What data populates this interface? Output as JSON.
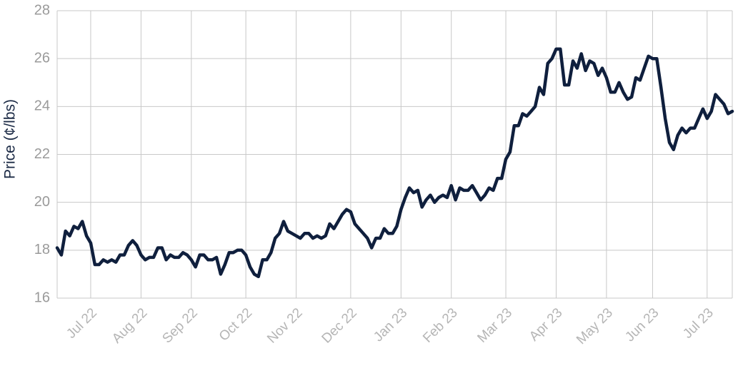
{
  "chart_data": {
    "type": "line",
    "y_label": "Price (¢/lbs)",
    "categories": [
      null,
      null,
      null,
      null,
      null,
      null,
      null,
      null,
      "Jul 22",
      null,
      null,
      null,
      null,
      null,
      null,
      null,
      null,
      null,
      null,
      null,
      "Aug 22",
      null,
      null,
      null,
      null,
      null,
      null,
      null,
      null,
      null,
      null,
      null,
      "Sep 22",
      null,
      null,
      null,
      null,
      null,
      null,
      null,
      null,
      null,
      null,
      null,
      null,
      "Oct 22",
      null,
      null,
      null,
      null,
      null,
      null,
      null,
      null,
      null,
      null,
      null,
      "Nov 22",
      null,
      null,
      null,
      null,
      null,
      null,
      null,
      null,
      null,
      null,
      null,
      null,
      "Dec 22",
      null,
      null,
      null,
      null,
      null,
      null,
      null,
      null,
      null,
      null,
      null,
      "Jan 23",
      null,
      null,
      null,
      null,
      null,
      null,
      null,
      null,
      null,
      null,
      null,
      "Feb 23",
      null,
      null,
      null,
      null,
      null,
      null,
      null,
      null,
      null,
      null,
      null,
      null,
      "Mar 23",
      null,
      null,
      null,
      null,
      null,
      null,
      null,
      null,
      null,
      null,
      null,
      "Apr 23",
      null,
      null,
      null,
      null,
      null,
      null,
      null,
      null,
      null,
      null,
      null,
      "May 23",
      null,
      null,
      null,
      null,
      null,
      null,
      null,
      null,
      null,
      null,
      "Jun 23",
      null,
      null,
      null,
      null,
      null,
      null,
      null,
      null,
      null,
      null,
      null,
      null,
      "Jul 23",
      null,
      null,
      null,
      null,
      null,
      null
    ],
    "series": [
      {
        "name": "Price",
        "color": "#0f1f3d",
        "values": [
          18.1,
          17.8,
          18.8,
          18.6,
          19.0,
          18.9,
          19.2,
          18.6,
          18.3,
          17.4,
          17.4,
          17.6,
          17.5,
          17.6,
          17.5,
          17.8,
          17.8,
          18.2,
          18.4,
          18.2,
          17.8,
          17.6,
          17.7,
          17.7,
          18.1,
          18.1,
          17.6,
          17.8,
          17.7,
          17.7,
          17.9,
          17.8,
          17.6,
          17.3,
          17.8,
          17.8,
          17.6,
          17.6,
          17.7,
          17.0,
          17.4,
          17.9,
          17.9,
          18.0,
          18.0,
          17.8,
          17.3,
          17.0,
          16.9,
          17.6,
          17.6,
          17.9,
          18.5,
          18.7,
          19.2,
          18.8,
          18.7,
          18.6,
          18.5,
          18.7,
          18.7,
          18.5,
          18.6,
          18.5,
          18.6,
          19.1,
          18.9,
          19.2,
          19.5,
          19.7,
          19.6,
          19.1,
          18.9,
          18.7,
          18.5,
          18.1,
          18.5,
          18.5,
          18.9,
          18.7,
          18.7,
          19.0,
          19.7,
          20.2,
          20.6,
          20.4,
          20.5,
          19.8,
          20.1,
          20.3,
          20.0,
          20.2,
          20.3,
          20.2,
          20.7,
          20.1,
          20.6,
          20.5,
          20.5,
          20.7,
          20.4,
          20.1,
          20.3,
          20.6,
          20.5,
          21.0,
          21.0,
          21.8,
          22.1,
          23.2,
          23.2,
          23.7,
          23.6,
          23.8,
          24.0,
          24.8,
          24.5,
          25.8,
          26.0,
          26.4,
          26.4,
          24.9,
          24.9,
          25.9,
          25.6,
          26.2,
          25.5,
          25.9,
          25.8,
          25.3,
          25.6,
          25.2,
          24.6,
          24.6,
          25.0,
          24.6,
          24.3,
          24.4,
          25.2,
          25.1,
          25.6,
          26.1,
          26.0,
          26.0,
          24.8,
          23.5,
          22.5,
          22.2,
          22.8,
          23.1,
          22.9,
          23.1,
          23.1,
          23.5,
          23.9,
          23.5,
          23.8,
          24.5,
          24.3,
          24.1,
          23.7,
          23.8
        ]
      }
    ],
    "ylim": [
      16,
      28
    ],
    "yticks": [
      16,
      18,
      20,
      22,
      24,
      26,
      28
    ],
    "grid": true
  }
}
